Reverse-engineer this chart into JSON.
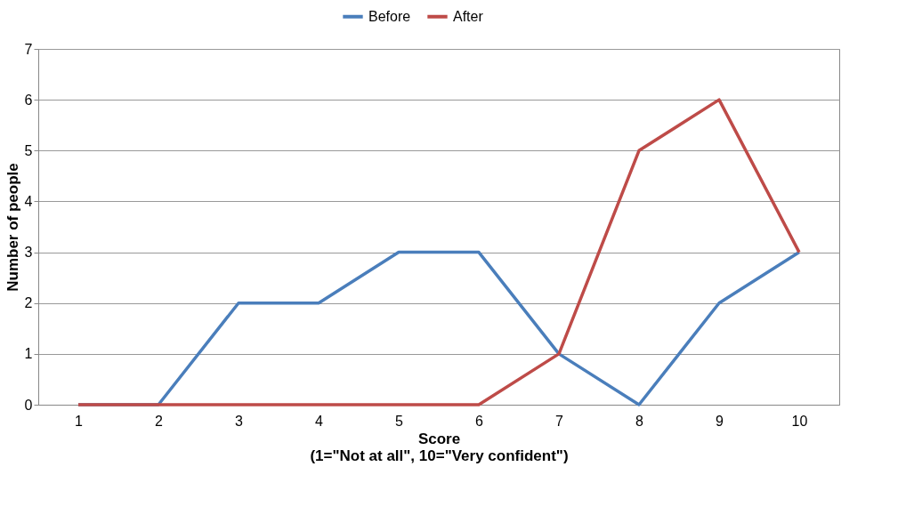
{
  "chart_data": {
    "type": "line",
    "xlabel": "Score\n(1=\"Not at all\", 10=\"Very confident\")",
    "ylabel": "Number of people",
    "categories": [
      "1",
      "2",
      "3",
      "4",
      "5",
      "6",
      "7",
      "8",
      "9",
      "10"
    ],
    "series": [
      {
        "name": "Before",
        "color": "#4a7ebb",
        "values": [
          0,
          0,
          2,
          2,
          3,
          3,
          1,
          0,
          2,
          3
        ]
      },
      {
        "name": "After",
        "color": "#be4b48",
        "values": [
          0,
          0,
          0,
          0,
          0,
          0,
          1,
          5,
          6,
          3
        ]
      }
    ],
    "ylim": [
      0,
      7
    ],
    "yticks": [
      0,
      1,
      2,
      3,
      4,
      5,
      6,
      7
    ],
    "grid": "y",
    "legend": "top",
    "marker": "none",
    "line_style": "solid"
  }
}
